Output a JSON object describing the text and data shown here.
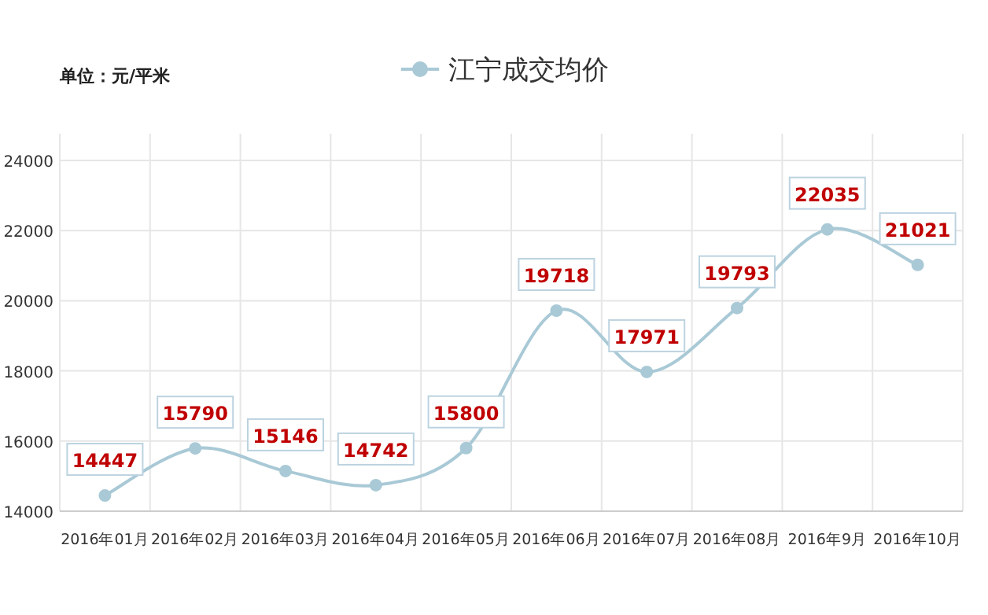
{
  "chart_data": {
    "type": "line",
    "annotations": [
      "单位：元/平米"
    ],
    "categories": [
      "2016年01月",
      "2016年02月",
      "2016年03月",
      "2016年04月",
      "2016年05月",
      "2016年06月",
      "2016年07月",
      "2016年08月",
      "2016年9月",
      "2016年10月"
    ],
    "series": [
      {
        "name": "江宁成交均价",
        "color": "#a9c9d6",
        "values": [
          14447,
          15790,
          15146,
          14742,
          15800,
          19718,
          17971,
          19793,
          22035,
          21021
        ]
      }
    ],
    "ylim": [
      14000,
      24000
    ],
    "yticks": [
      14000,
      16000,
      18000,
      20000,
      22000,
      24000
    ],
    "grid": true,
    "legend": "top",
    "marker": "circle",
    "line_style": "solid",
    "data_labels": true
  }
}
